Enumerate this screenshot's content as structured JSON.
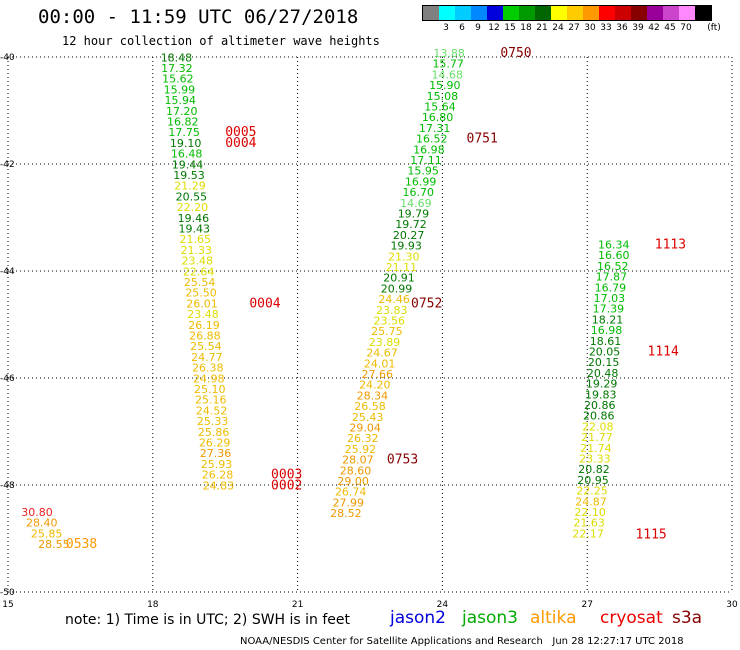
{
  "title": "00:00 - 11:59 UTC 06/27/2018",
  "subtitle": "12 hour collection of altimeter wave heights",
  "legend": {
    "unit": "(ft)",
    "bins": [
      {
        "label": "",
        "color": "#808080"
      },
      {
        "label": "3",
        "color": "#00ffff"
      },
      {
        "label": "6",
        "color": "#00ccff"
      },
      {
        "label": "9",
        "color": "#0088ff"
      },
      {
        "label": "12",
        "color": "#0000dd"
      },
      {
        "label": "15",
        "color": "#00cc00"
      },
      {
        "label": "18",
        "color": "#009900"
      },
      {
        "label": "21",
        "color": "#006600"
      },
      {
        "label": "24",
        "color": "#ffff00"
      },
      {
        "label": "27",
        "color": "#ffcc00"
      },
      {
        "label": "30",
        "color": "#ff9900"
      },
      {
        "label": "33",
        "color": "#ff0000"
      },
      {
        "label": "36",
        "color": "#cc0000"
      },
      {
        "label": "39",
        "color": "#880000"
      },
      {
        "label": "42",
        "color": "#990099"
      },
      {
        "label": "45",
        "color": "#cc44cc"
      },
      {
        "label": "70",
        "color": "#ff88ff"
      },
      {
        "label": "",
        "color": "#000000"
      }
    ]
  },
  "chart_data": {
    "type": "scatter",
    "title": "00:00 - 11:59 UTC 06/27/2018",
    "subtitle": "12 hour collection of altimeter wave heights",
    "xlim": [
      15,
      30
    ],
    "ylim": [
      -50,
      -40
    ],
    "xticks": [
      "15",
      "18",
      "21",
      "24",
      "27",
      "30"
    ],
    "yticks": [
      "-40",
      "-42",
      "-44",
      "-46",
      "-48",
      "-50"
    ],
    "grid": true,
    "series": [
      {
        "name": "jason3",
        "color": "#00aa00",
        "points": [
          {
            "x": 18.49,
            "y": -40.08,
            "v": "18.48"
          },
          {
            "x": 18.5,
            "y": -40.28,
            "v": "17.32"
          },
          {
            "x": 18.52,
            "y": -40.48,
            "v": "15.62"
          },
          {
            "x": 18.55,
            "y": -40.68,
            "v": "15.99"
          },
          {
            "x": 18.57,
            "y": -40.88,
            "v": "15.94"
          },
          {
            "x": 18.6,
            "y": -41.08,
            "v": "17.20"
          },
          {
            "x": 18.62,
            "y": -41.28,
            "v": "16.82"
          },
          {
            "x": 18.65,
            "y": -41.48,
            "v": "17.75"
          },
          {
            "x": 18.68,
            "y": -41.68,
            "v": "19.10"
          },
          {
            "x": 18.7,
            "y": -41.88,
            "v": "16.48"
          },
          {
            "x": 18.72,
            "y": -42.08,
            "v": "19.44"
          },
          {
            "x": 18.75,
            "y": -42.28,
            "v": "19.53"
          },
          {
            "x": 18.77,
            "y": -42.48,
            "v": "21.29"
          },
          {
            "x": 18.8,
            "y": -42.68,
            "v": "20.55"
          },
          {
            "x": 18.82,
            "y": -42.88,
            "v": "22.20"
          },
          {
            "x": 18.84,
            "y": -43.08,
            "v": "19.46"
          },
          {
            "x": 18.86,
            "y": -43.28,
            "v": "19.43"
          },
          {
            "x": 18.88,
            "y": -43.48,
            "v": "21.65"
          },
          {
            "x": 18.9,
            "y": -43.68,
            "v": "21.33"
          },
          {
            "x": 18.92,
            "y": -43.88,
            "v": "23.48"
          },
          {
            "x": 18.95,
            "y": -44.08,
            "v": "22.64"
          },
          {
            "x": 18.97,
            "y": -44.28,
            "v": "25.54"
          },
          {
            "x": 19.0,
            "y": -44.48,
            "v": "25.50"
          },
          {
            "x": 19.02,
            "y": -44.68,
            "v": "26.01"
          },
          {
            "x": 19.04,
            "y": -44.88,
            "v": "23.48"
          },
          {
            "x": 19.06,
            "y": -45.08,
            "v": "26.19"
          },
          {
            "x": 19.08,
            "y": -45.28,
            "v": "26.88"
          },
          {
            "x": 19.1,
            "y": -45.48,
            "v": "25.54"
          },
          {
            "x": 19.12,
            "y": -45.68,
            "v": "24.77"
          },
          {
            "x": 19.14,
            "y": -45.88,
            "v": "26.38"
          },
          {
            "x": 19.16,
            "y": -46.08,
            "v": "24.98"
          },
          {
            "x": 19.18,
            "y": -46.28,
            "v": "25.10"
          },
          {
            "x": 19.2,
            "y": -46.48,
            "v": "25.16"
          },
          {
            "x": 19.22,
            "y": -46.68,
            "v": "24.52"
          },
          {
            "x": 19.24,
            "y": -46.88,
            "v": "25.33"
          },
          {
            "x": 19.26,
            "y": -47.08,
            "v": "25.86"
          },
          {
            "x": 19.28,
            "y": -47.28,
            "v": "26.29"
          },
          {
            "x": 19.3,
            "y": -47.48,
            "v": "27.36"
          },
          {
            "x": 19.32,
            "y": -47.68,
            "v": "25.93"
          },
          {
            "x": 19.34,
            "y": -47.88,
            "v": "26.28"
          },
          {
            "x": 19.36,
            "y": -48.08,
            "v": "24.83"
          },
          {
            "x": 24.14,
            "y": -40.0,
            "v": "13.88"
          },
          {
            "x": 24.12,
            "y": -40.2,
            "v": "15.77"
          },
          {
            "x": 24.1,
            "y": -40.4,
            "v": "14.68"
          },
          {
            "x": 24.05,
            "y": -40.6,
            "v": "15.90"
          },
          {
            "x": 24.0,
            "y": -40.8,
            "v": "15.08"
          },
          {
            "x": 23.95,
            "y": -41.0,
            "v": "15.64"
          },
          {
            "x": 23.9,
            "y": -41.2,
            "v": "16.80"
          },
          {
            "x": 23.84,
            "y": -41.4,
            "v": "17.31"
          },
          {
            "x": 23.78,
            "y": -41.6,
            "v": "16.52"
          },
          {
            "x": 23.72,
            "y": -41.8,
            "v": "16.98"
          },
          {
            "x": 23.66,
            "y": -42.0,
            "v": "17.11"
          },
          {
            "x": 23.6,
            "y": -42.2,
            "v": "15.95"
          },
          {
            "x": 23.55,
            "y": -42.4,
            "v": "16.99"
          },
          {
            "x": 23.5,
            "y": -42.6,
            "v": "16.70"
          },
          {
            "x": 23.45,
            "y": -42.8,
            "v": "14.69"
          },
          {
            "x": 23.4,
            "y": -43.0,
            "v": "19.79"
          },
          {
            "x": 23.35,
            "y": -43.2,
            "v": "19.72"
          },
          {
            "x": 23.3,
            "y": -43.4,
            "v": "20.27"
          },
          {
            "x": 23.25,
            "y": -43.6,
            "v": "19.93"
          },
          {
            "x": 23.2,
            "y": -43.8,
            "v": "21.30"
          },
          {
            "x": 23.15,
            "y": -44.0,
            "v": "21.11"
          },
          {
            "x": 23.1,
            "y": -44.2,
            "v": "20.91"
          },
          {
            "x": 23.05,
            "y": -44.4,
            "v": "20.99"
          },
          {
            "x": 23.0,
            "y": -44.6,
            "v": "24.46"
          },
          {
            "x": 22.95,
            "y": -44.8,
            "v": "23.83"
          },
          {
            "x": 22.9,
            "y": -45.0,
            "v": "23.56"
          },
          {
            "x": 22.85,
            "y": -45.2,
            "v": "25.75"
          },
          {
            "x": 22.8,
            "y": -45.4,
            "v": "23.89"
          },
          {
            "x": 22.75,
            "y": -45.6,
            "v": "24.67"
          },
          {
            "x": 22.7,
            "y": -45.8,
            "v": "24.01"
          },
          {
            "x": 22.65,
            "y": -46.0,
            "v": "27.66"
          },
          {
            "x": 22.6,
            "y": -46.2,
            "v": "24.20"
          },
          {
            "x": 22.55,
            "y": -46.4,
            "v": "28.34"
          },
          {
            "x": 22.5,
            "y": -46.6,
            "v": "26.58"
          },
          {
            "x": 22.45,
            "y": -46.8,
            "v": "25.43"
          },
          {
            "x": 22.4,
            "y": -47.0,
            "v": "29.04"
          },
          {
            "x": 22.35,
            "y": -47.2,
            "v": "26.32"
          },
          {
            "x": 22.3,
            "y": -47.4,
            "v": "25.92"
          },
          {
            "x": 22.25,
            "y": -47.6,
            "v": "28.07"
          },
          {
            "x": 22.2,
            "y": -47.8,
            "v": "28.60"
          },
          {
            "x": 22.15,
            "y": -48.0,
            "v": "29.00"
          },
          {
            "x": 22.1,
            "y": -48.2,
            "v": "26.74"
          },
          {
            "x": 22.05,
            "y": -48.4,
            "v": "27.99"
          },
          {
            "x": 22.0,
            "y": -48.6,
            "v": "28.52"
          },
          {
            "x": 27.55,
            "y": -43.58,
            "v": "16.34"
          },
          {
            "x": 27.55,
            "y": -43.78,
            "v": "16.60"
          },
          {
            "x": 27.53,
            "y": -43.98,
            "v": "16.52"
          },
          {
            "x": 27.5,
            "y": -44.18,
            "v": "17.87"
          },
          {
            "x": 27.48,
            "y": -44.38,
            "v": "16.79"
          },
          {
            "x": 27.46,
            "y": -44.58,
            "v": "17.03"
          },
          {
            "x": 27.44,
            "y": -44.78,
            "v": "17.39"
          },
          {
            "x": 27.42,
            "y": -44.98,
            "v": "18.21"
          },
          {
            "x": 27.4,
            "y": -45.18,
            "v": "16.98"
          },
          {
            "x": 27.38,
            "y": -45.38,
            "v": "18.61"
          },
          {
            "x": 27.36,
            "y": -45.58,
            "v": "20.05"
          },
          {
            "x": 27.34,
            "y": -45.78,
            "v": "20.15"
          },
          {
            "x": 27.32,
            "y": -45.98,
            "v": "20.48"
          },
          {
            "x": 27.3,
            "y": -46.18,
            "v": "19.29"
          },
          {
            "x": 27.28,
            "y": -46.38,
            "v": "19.83"
          },
          {
            "x": 27.26,
            "y": -46.58,
            "v": "20.86"
          },
          {
            "x": 27.24,
            "y": -46.78,
            "v": "20.86"
          },
          {
            "x": 27.22,
            "y": -46.98,
            "v": "22.08"
          },
          {
            "x": 27.2,
            "y": -47.18,
            "v": "21.77"
          },
          {
            "x": 27.18,
            "y": -47.38,
            "v": "21.74"
          },
          {
            "x": 27.16,
            "y": -47.58,
            "v": "23.33"
          },
          {
            "x": 27.14,
            "y": -47.78,
            "v": "20.82"
          },
          {
            "x": 27.12,
            "y": -47.98,
            "v": "20.95"
          },
          {
            "x": 27.1,
            "y": -48.18,
            "v": "22.25"
          },
          {
            "x": 27.08,
            "y": -48.38,
            "v": "24.87"
          },
          {
            "x": 27.06,
            "y": -48.58,
            "v": "22.10"
          },
          {
            "x": 27.04,
            "y": -48.78,
            "v": "21.63"
          },
          {
            "x": 27.02,
            "y": -48.98,
            "v": "22.17"
          },
          {
            "x": 15.6,
            "y": -48.58,
            "v": "30.80"
          },
          {
            "x": 15.7,
            "y": -48.78,
            "v": "28.40"
          },
          {
            "x": 15.8,
            "y": -48.98,
            "v": "25.85"
          },
          {
            "x": 15.95,
            "y": -49.18,
            "v": "28.55"
          }
        ]
      }
    ],
    "annotations": [
      {
        "text": "0750",
        "x": 25.2,
        "y": -40.0,
        "color": "#880000"
      },
      {
        "text": "0005",
        "x": 19.5,
        "y": -41.48,
        "color": "#dd0000"
      },
      {
        "text": "0004",
        "x": 19.5,
        "y": -41.68,
        "color": "#dd0000"
      },
      {
        "text": "0751",
        "x": 24.5,
        "y": -41.6,
        "color": "#880000"
      },
      {
        "text": "1113",
        "x": 28.4,
        "y": -43.58,
        "color": "#dd0000"
      },
      {
        "text": "0004",
        "x": 20.0,
        "y": -44.68,
        "color": "#dd0000"
      },
      {
        "text": "0752",
        "x": 23.35,
        "y": -44.68,
        "color": "#880000"
      },
      {
        "text": "1114",
        "x": 28.25,
        "y": -45.58,
        "color": "#dd0000"
      },
      {
        "text": "0003",
        "x": 20.45,
        "y": -47.88,
        "color": "#dd0000"
      },
      {
        "text": "0753",
        "x": 22.85,
        "y": -47.6,
        "color": "#880000"
      },
      {
        "text": "0002",
        "x": 20.45,
        "y": -48.08,
        "color": "#dd0000"
      },
      {
        "text": "1115",
        "x": 28.0,
        "y": -49.0,
        "color": "#dd0000"
      },
      {
        "text": "0538",
        "x": 16.2,
        "y": -49.18,
        "color": "#ff9900"
      }
    ]
  },
  "footer": {
    "note": "note: 1) Time is in UTC; 2) SWH is in feet",
    "satellites": [
      {
        "name": "jason2",
        "color": "#0000dd"
      },
      {
        "name": "jason3",
        "color": "#00aa00"
      },
      {
        "name": "altika",
        "color": "#ff9900"
      },
      {
        "name": "cryosat",
        "color": "#ee0000"
      },
      {
        "name": "s3a",
        "color": "#880000"
      }
    ],
    "credit": "NOAA/NESDIS Center for Satellite Applications and Research   Jun 28 12:27:17 UTC 2018"
  }
}
